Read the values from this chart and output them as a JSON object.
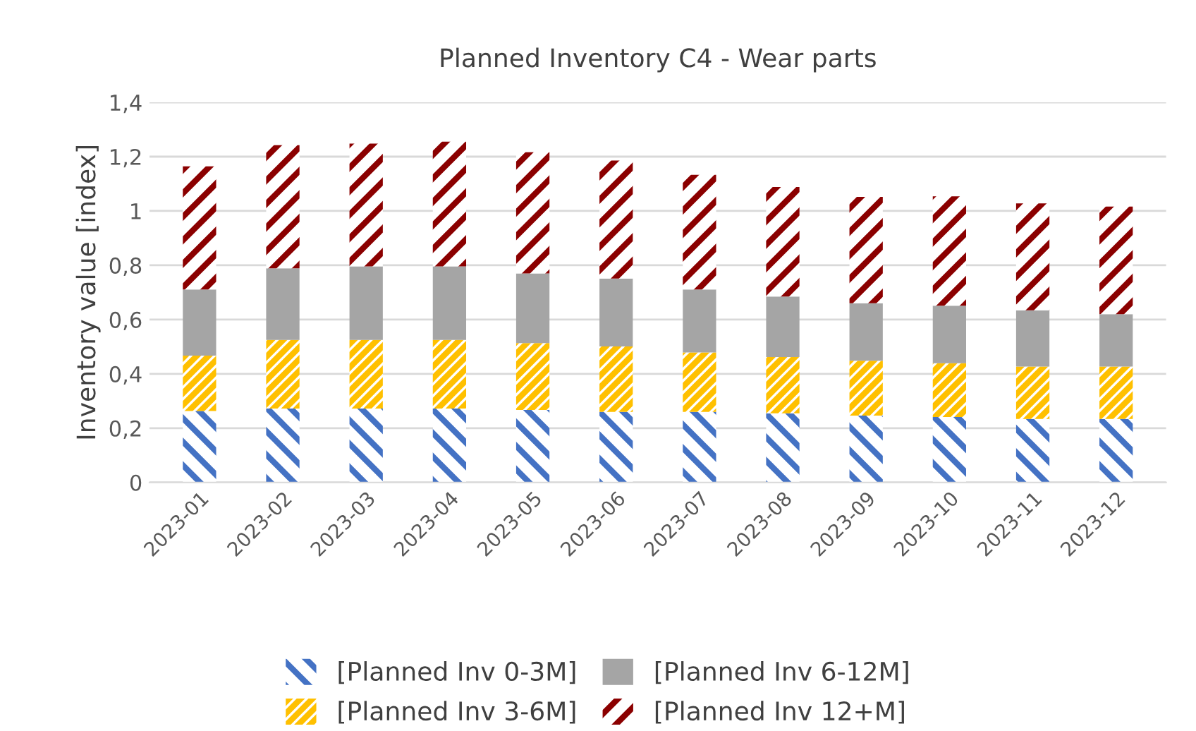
{
  "chart_data": {
    "type": "bar",
    "stacked": true,
    "title": "Planned Inventory C4 - Wear parts",
    "ylabel": "Inventory value [index]",
    "categories": [
      "2023-01",
      "2023-02",
      "2023-03",
      "2023-04",
      "2023-05",
      "2023-06",
      "2023-07",
      "2023-08",
      "2023-09",
      "2023-10",
      "2023-11",
      "2023-12"
    ],
    "series": [
      {
        "name": "[Planned Inv 0-3M]",
        "color": "#4472c4",
        "values": [
          0.263,
          0.272,
          0.272,
          0.272,
          0.267,
          0.26,
          0.26,
          0.255,
          0.246,
          0.241,
          0.234,
          0.234
        ]
      },
      {
        "name": "[Planned Inv 3-6M]",
        "color": "#ffc000",
        "values": [
          0.204,
          0.253,
          0.253,
          0.253,
          0.246,
          0.241,
          0.219,
          0.207,
          0.202,
          0.198,
          0.193,
          0.193
        ]
      },
      {
        "name": "[Planned Inv 6-12M]",
        "color": "#a5a5a5",
        "values": [
          0.244,
          0.264,
          0.271,
          0.271,
          0.257,
          0.25,
          0.232,
          0.223,
          0.212,
          0.212,
          0.207,
          0.193
        ]
      },
      {
        "name": "[Planned Inv 12+M]",
        "color": "#8b0000",
        "values": [
          0.453,
          0.453,
          0.452,
          0.459,
          0.446,
          0.435,
          0.422,
          0.403,
          0.392,
          0.403,
          0.394,
          0.396
        ]
      }
    ],
    "ylim": [
      0,
      1.4
    ],
    "yticks": [
      0,
      {
        "value": 0.2,
        "label": "0,2"
      },
      {
        "value": 0.4,
        "label": "0,4"
      },
      {
        "value": 0.6,
        "label": "0,6"
      },
      {
        "value": 0.8,
        "label": "0,8"
      },
      1,
      {
        "value": 1.2,
        "label": "1,2"
      },
      {
        "value": 1.4,
        "label": "1,4"
      }
    ],
    "grid": "y",
    "legend": "bottom"
  }
}
